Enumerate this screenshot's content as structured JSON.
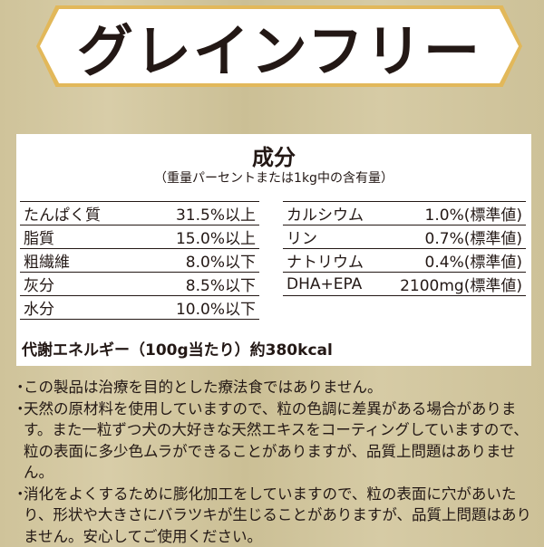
{
  "banner": {
    "title": "グレインフリー"
  },
  "panel": {
    "title": "成分",
    "subtitle": "（重量パーセントまたは1kg中の含有量）",
    "left_rows": [
      {
        "name": "たんぱく質",
        "value": "31.5%以上"
      },
      {
        "name": "脂質",
        "value": "15.0%以上"
      },
      {
        "name": "粗繊維",
        "value": "8.0%以下"
      },
      {
        "name": "灰分",
        "value": "8.5%以下"
      },
      {
        "name": "水分",
        "value": "10.0%以下"
      }
    ],
    "right_rows": [
      {
        "name": "カルシウム",
        "value": "1.0%(標準値)"
      },
      {
        "name": "リン",
        "value": "0.7%(標準値)"
      },
      {
        "name": "ナトリウム",
        "value": "0.4%(標準値)"
      },
      {
        "name": "DHA+EPA",
        "value": "2100mg(標準値)"
      }
    ],
    "energy": "代謝エネルギー（100g当たり）約380kcal"
  },
  "notes": [
    "この製品は治療を目的とした療法食ではありません。",
    "天然の原材料を使用していますので、粒の色調に差異がある場合があります。また一粒ずつ犬の大好きな天然エキスをコーティングしていますので、粒の表面に多少色ムラができることがありますが、品質上問題はありません。",
    "消化をよくするために膨化加工をしていますので、粒の表面に穴があいたり、形状や大きさにバラツキが生じることがありますが、品質上問題はありません。安心してご使用ください。"
  ],
  "bullet": "・"
}
